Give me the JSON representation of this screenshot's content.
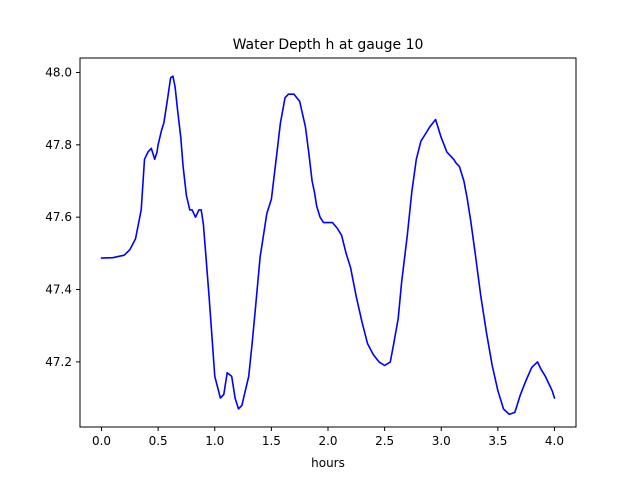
{
  "chart_data": {
    "type": "line",
    "title": "Water Depth h at gauge 10",
    "xlabel": "hours",
    "ylabel": "",
    "xlim": [
      -0.19,
      4.19
    ],
    "ylim": [
      47.02,
      48.04
    ],
    "xticks": [
      0.0,
      0.5,
      1.0,
      1.5,
      2.0,
      2.5,
      3.0,
      3.5,
      4.0
    ],
    "xtick_labels": [
      "0.0",
      "0.5",
      "1.0",
      "1.5",
      "2.0",
      "2.5",
      "3.0",
      "3.5",
      "4.0"
    ],
    "yticks": [
      47.2,
      47.4,
      47.6,
      47.8,
      48.0
    ],
    "ytick_labels": [
      "47.2",
      "47.4",
      "47.6",
      "47.8",
      "48.0"
    ],
    "grid": false,
    "series": [
      {
        "color": "#0000ff",
        "x": [
          0.0,
          0.1,
          0.2,
          0.25,
          0.3,
          0.35,
          0.38,
          0.41,
          0.44,
          0.47,
          0.49,
          0.5,
          0.53,
          0.55,
          0.58,
          0.61,
          0.63,
          0.65,
          0.67,
          0.7,
          0.72,
          0.75,
          0.78,
          0.8,
          0.83,
          0.86,
          0.88,
          0.9,
          0.92,
          0.95,
          1.0,
          1.05,
          1.08,
          1.11,
          1.15,
          1.18,
          1.21,
          1.24,
          1.27,
          1.3,
          1.33,
          1.36,
          1.4,
          1.43,
          1.46,
          1.5,
          1.55,
          1.58,
          1.62,
          1.65,
          1.7,
          1.75,
          1.8,
          1.83,
          1.86,
          1.88,
          1.9,
          1.93,
          1.96,
          2.0,
          2.04,
          2.08,
          2.12,
          2.16,
          2.2,
          2.25,
          2.3,
          2.35,
          2.4,
          2.45,
          2.5,
          2.55,
          2.58,
          2.62,
          2.65,
          2.7,
          2.74,
          2.78,
          2.82,
          2.86,
          2.9,
          2.95,
          3.0,
          3.05,
          3.08,
          3.11,
          3.13,
          3.16,
          3.2,
          3.23,
          3.26,
          3.3,
          3.35,
          3.4,
          3.45,
          3.5,
          3.55,
          3.6,
          3.65,
          3.7,
          3.75,
          3.8,
          3.85,
          3.88,
          3.92,
          3.95,
          3.98,
          4.0
        ],
        "values": [
          47.487,
          47.488,
          47.495,
          47.51,
          47.54,
          47.62,
          47.76,
          47.78,
          47.79,
          47.76,
          47.78,
          47.8,
          47.84,
          47.86,
          47.92,
          47.985,
          47.99,
          47.96,
          47.9,
          47.82,
          47.74,
          47.66,
          47.62,
          47.62,
          47.6,
          47.62,
          47.62,
          47.58,
          47.5,
          47.38,
          47.16,
          47.1,
          47.11,
          47.17,
          47.16,
          47.1,
          47.07,
          47.08,
          47.12,
          47.16,
          47.25,
          47.35,
          47.49,
          47.55,
          47.61,
          47.65,
          47.78,
          47.86,
          47.93,
          47.94,
          47.94,
          47.92,
          47.85,
          47.78,
          47.7,
          47.67,
          47.63,
          47.6,
          47.585,
          47.585,
          47.585,
          47.57,
          47.55,
          47.5,
          47.46,
          47.38,
          47.31,
          47.25,
          47.22,
          47.2,
          47.19,
          47.2,
          47.25,
          47.32,
          47.42,
          47.55,
          47.67,
          47.76,
          47.81,
          47.83,
          47.85,
          47.87,
          47.82,
          47.78,
          47.77,
          47.76,
          47.75,
          47.74,
          47.7,
          47.65,
          47.59,
          47.5,
          47.38,
          47.28,
          47.19,
          47.12,
          47.07,
          47.055,
          47.06,
          47.11,
          47.15,
          47.185,
          47.2,
          47.18,
          47.16,
          47.14,
          47.12,
          47.1
        ]
      }
    ]
  }
}
